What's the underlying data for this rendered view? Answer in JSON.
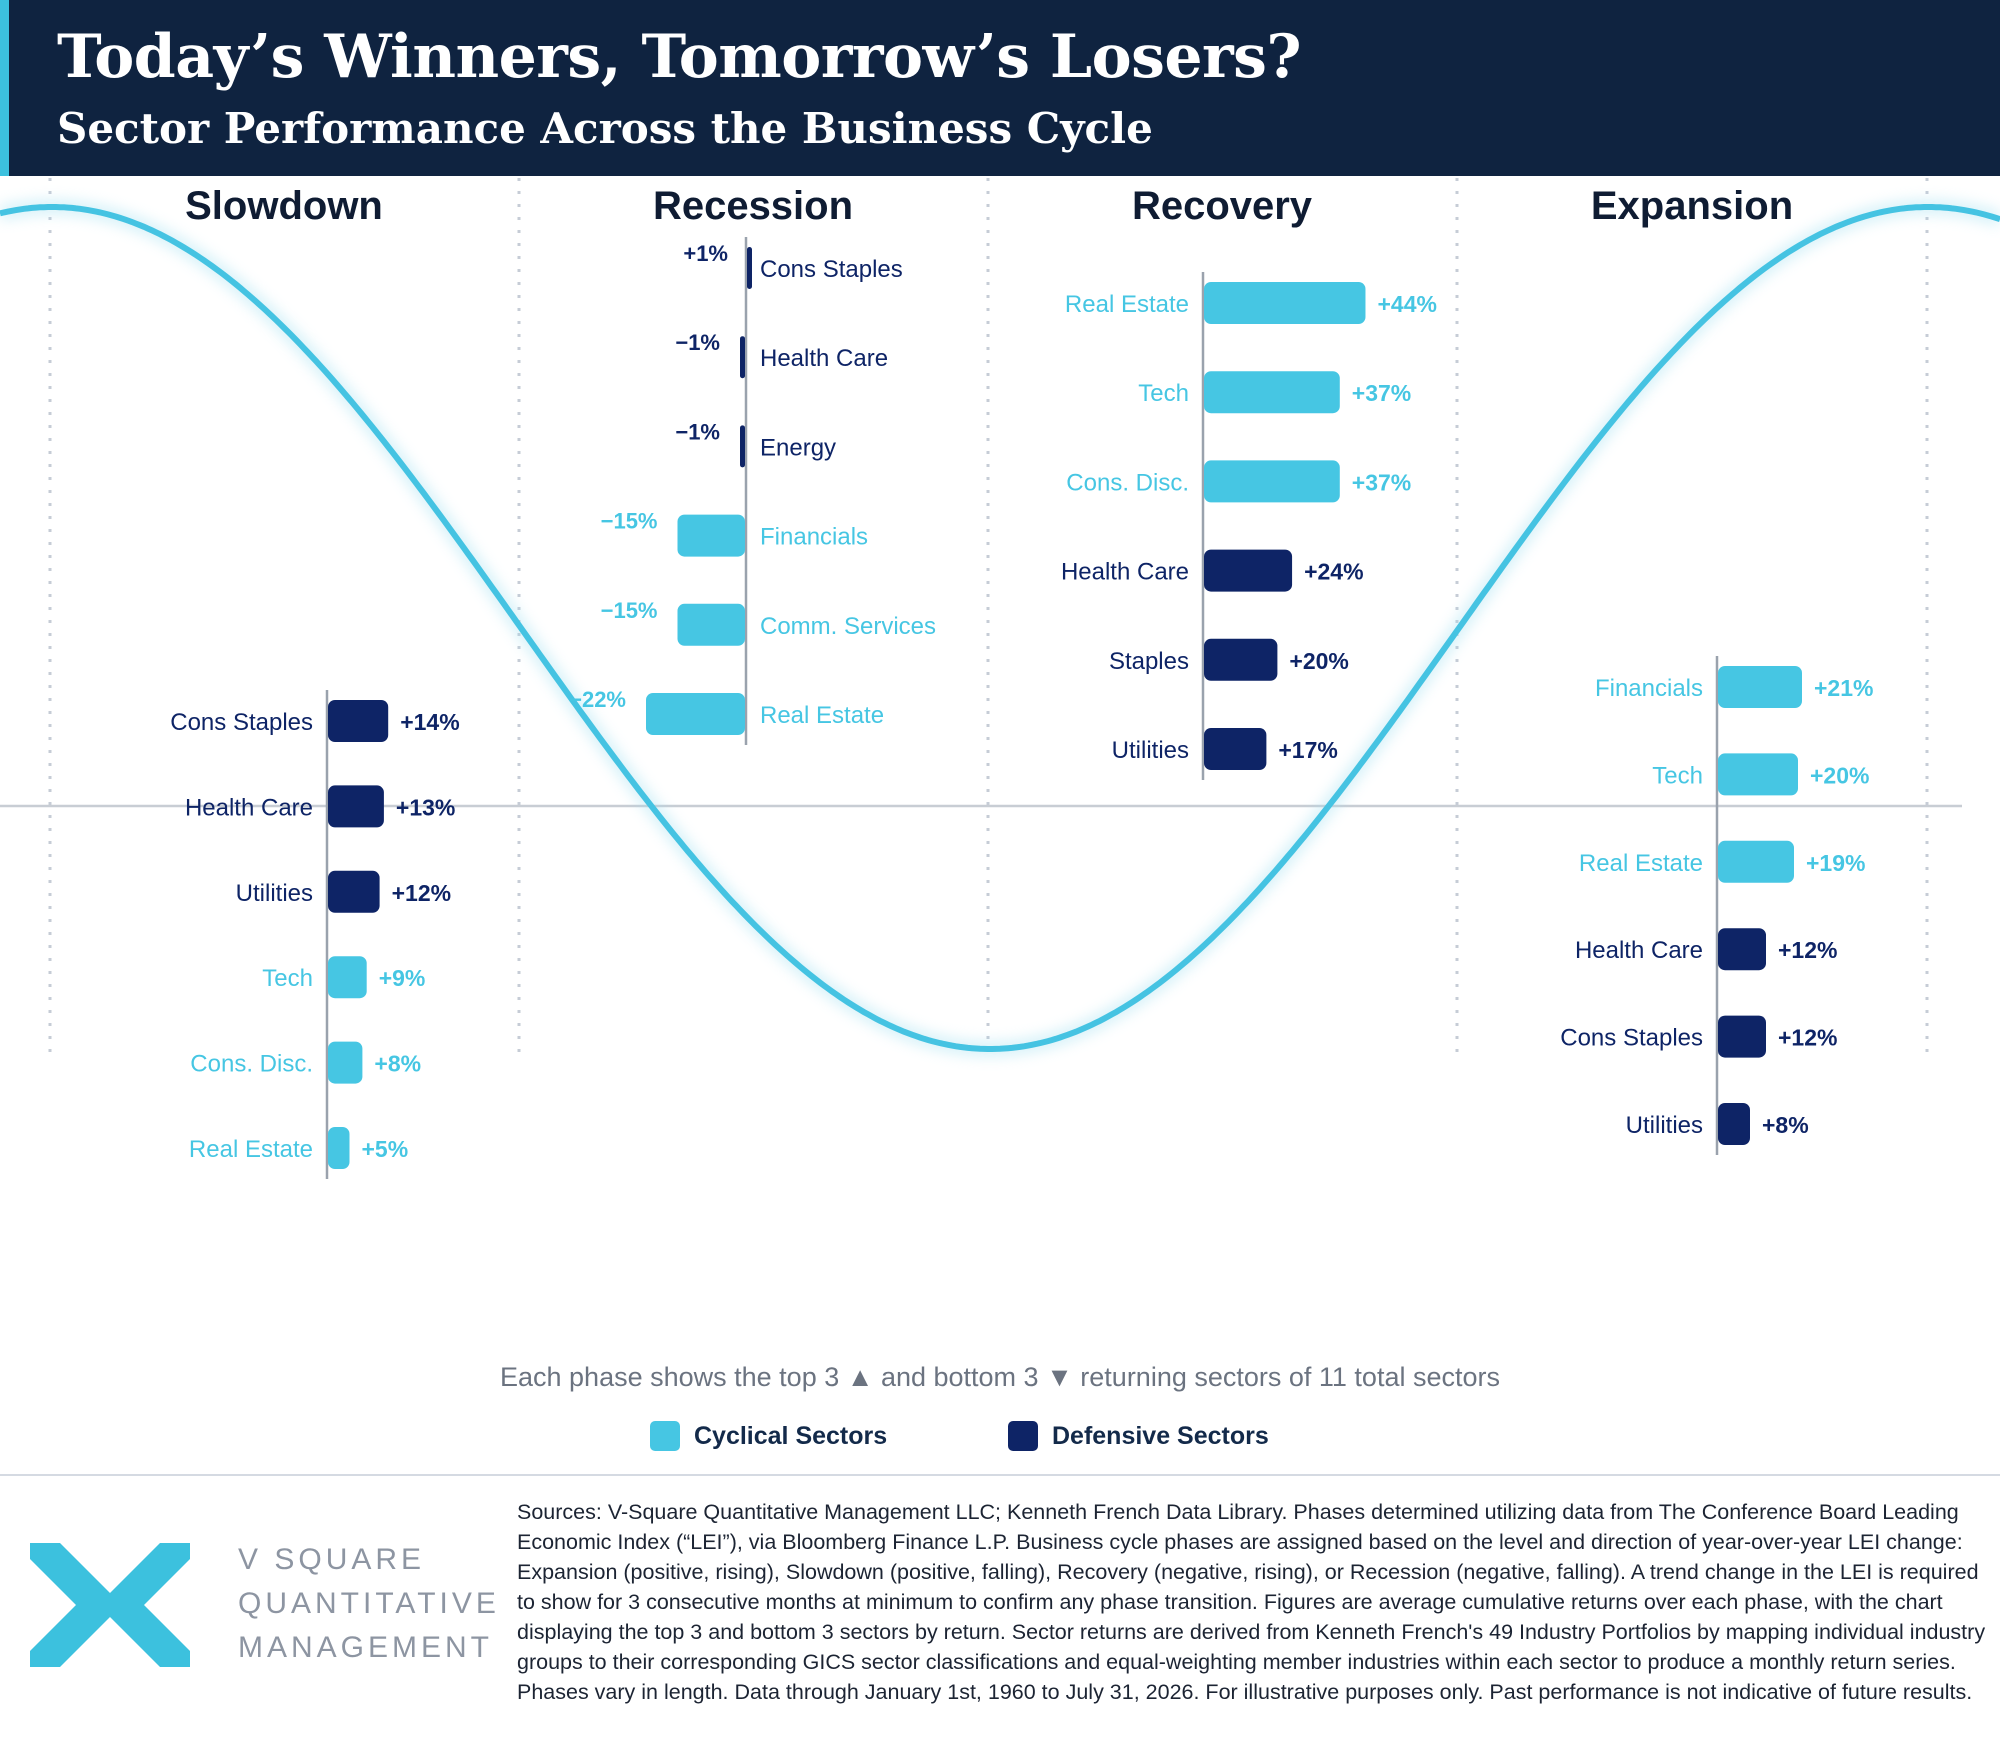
{
  "header": {
    "title": "Today’s Winners, Tomorrow’s Losers?",
    "subtitle": "Sector Performance Across the Business Cycle"
  },
  "colors": {
    "cyclical": "#46c6e3",
    "defensive": "#0e2466",
    "wave": "#45c3e2",
    "header_bg": "#0f2340"
  },
  "chart_data": {
    "type": "bar",
    "series_groups": [
      "Cyclical Sectors",
      "Defensive Sectors"
    ],
    "phases": [
      {
        "name": "Slowdown",
        "bars": [
          {
            "label": "Cons Staples",
            "value": 14,
            "display": "+14%",
            "group": "defensive"
          },
          {
            "label": "Health Care",
            "value": 13,
            "display": "+13%",
            "group": "defensive"
          },
          {
            "label": "Utilities",
            "value": 12,
            "display": "+12%",
            "group": "defensive"
          },
          {
            "label": "Tech",
            "value": 9,
            "display": "+9%",
            "group": "cyclical"
          },
          {
            "label": "Cons. Disc.",
            "value": 8,
            "display": "+8%",
            "group": "cyclical"
          },
          {
            "label": "Real Estate",
            "value": 5,
            "display": "+5%",
            "group": "cyclical"
          }
        ]
      },
      {
        "name": "Recession",
        "bars": [
          {
            "label": "Cons Staples",
            "value": 1,
            "display": "+1%",
            "group": "defensive"
          },
          {
            "label": "Health Care",
            "value": -1,
            "display": "−1%",
            "group": "defensive"
          },
          {
            "label": "Energy",
            "value": -1,
            "display": "−1%",
            "group": "defensive"
          },
          {
            "label": "Financials",
            "value": -15,
            "display": "−15%",
            "group": "cyclical"
          },
          {
            "label": "Comm. Services",
            "value": -15,
            "display": "−15%",
            "group": "cyclical"
          },
          {
            "label": "Real Estate",
            "value": -22,
            "display": "−22%",
            "group": "cyclical"
          }
        ]
      },
      {
        "name": "Recovery",
        "bars": [
          {
            "label": "Real Estate",
            "value": 44,
            "display": "+44%",
            "group": "cyclical"
          },
          {
            "label": "Tech",
            "value": 37,
            "display": "+37%",
            "group": "cyclical"
          },
          {
            "label": "Cons. Disc.",
            "value": 37,
            "display": "+37%",
            "group": "cyclical"
          },
          {
            "label": "Health Care",
            "value": 24,
            "display": "+24%",
            "group": "defensive"
          },
          {
            "label": "Staples",
            "value": 20,
            "display": "+20%",
            "group": "defensive"
          },
          {
            "label": "Utilities",
            "value": 17,
            "display": "+17%",
            "group": "defensive"
          }
        ]
      },
      {
        "name": "Expansion",
        "bars": [
          {
            "label": "Financials",
            "value": 21,
            "display": "+21%",
            "group": "cyclical"
          },
          {
            "label": "Tech",
            "value": 20,
            "display": "+20%",
            "group": "cyclical"
          },
          {
            "label": "Real Estate",
            "value": 19,
            "display": "+19%",
            "group": "cyclical"
          },
          {
            "label": "Health Care",
            "value": 12,
            "display": "+12%",
            "group": "defensive"
          },
          {
            "label": "Cons Staples",
            "value": 12,
            "display": "+12%",
            "group": "defensive"
          },
          {
            "label": "Utilities",
            "value": 8,
            "display": "+8%",
            "group": "defensive"
          }
        ]
      }
    ],
    "note": "Each phase shows the top 3 ▲ and bottom 3 ▼ returning sectors of 11 total sectors",
    "legend": [
      {
        "label": "Cyclical Sectors",
        "group": "cyclical"
      },
      {
        "label": "Defensive Sectors",
        "group": "defensive"
      }
    ]
  },
  "footer": {
    "brand_lines": [
      "V SQUARE",
      "QUANTITATIVE",
      "MANAGEMENT"
    ],
    "logo_icon": "chevrons-logo-icon",
    "sources": "Sources: V-Square Quantitative Management LLC; Kenneth French Data Library. Phases determined utilizing data from The Conference Board Leading Economic Index (“LEI”), via Bloomberg Finance L.P. Business cycle phases are assigned based on the level and direction of year-over-year LEI change:  Expansion (positive, rising), Slowdown (positive, falling), Recovery (negative, rising), or Recession (negative, falling). A trend change in the LEI is required to show for 3 consecutive months at minimum to confirm any phase transition. Figures are average cumulative returns over each phase, with the chart displaying the top 3 and bottom 3 sectors by return.  Sector returns are derived from Kenneth French's 49 Industry Portfolios by mapping individual industry groups to their corresponding GICS sector classifications and equal-weighting member industries within each sector to produce a monthly return series. Phases vary in length. Data through January 1st, 1960 to July 31, 2026. For illustrative purposes only. Past performance is not indicative of future results."
  }
}
